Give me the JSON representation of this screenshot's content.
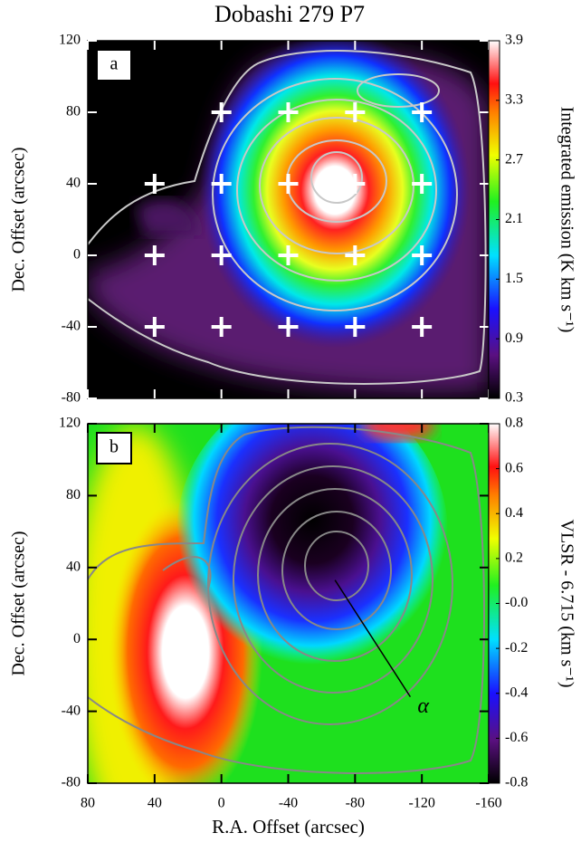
{
  "chart_data": [
    {
      "type": "heatmap",
      "title": "Dobashi 279 P7",
      "panel_label": "a",
      "ylabel": "Dec. Offset (arcsec)",
      "xlim": [
        80,
        -160
      ],
      "xticks": [
        80,
        40,
        0,
        -40,
        -80,
        -120,
        -160
      ],
      "ylim": [
        -80,
        120
      ],
      "yticks": [
        120,
        80,
        40,
        0,
        -40,
        -80
      ],
      "colorbar": {
        "label": "Integrated emission (K km s⁻¹)",
        "lim": [
          0.3,
          3.9
        ],
        "ticks": [
          3.9,
          3.3,
          2.7,
          2.1,
          1.5,
          0.9,
          0.3
        ]
      },
      "markers": {
        "x": [
          0,
          -40,
          -80,
          -120,
          40,
          0,
          -40,
          -80,
          -120,
          40,
          0,
          -40,
          -80,
          -120,
          40,
          0,
          -40,
          -80,
          -120
        ],
        "y": [
          80,
          80,
          80,
          80,
          40,
          40,
          40,
          40,
          40,
          0,
          0,
          0,
          0,
          0,
          -40,
          -40,
          -40,
          -40,
          -40
        ]
      }
    },
    {
      "type": "heatmap",
      "panel_label": "b",
      "xlabel": "R.A. Offset (arcsec)",
      "ylabel": "Dec. Offset (arcsec)",
      "xlim": [
        80,
        -160
      ],
      "xticks": [
        80,
        40,
        0,
        -40,
        -80,
        -120,
        -160
      ],
      "ylim": [
        -80,
        120
      ],
      "yticks": [
        120,
        80,
        40,
        0,
        -40,
        -80
      ],
      "colorbar": {
        "label": "VLSR - 6.715 (km s⁻¹)",
        "lim": [
          -0.8,
          0.8
        ],
        "ticks": [
          0.8,
          0.6,
          0.4,
          0.2,
          {
            "value": 0,
            "label": "-0.0"
          },
          -0.2,
          -0.4,
          -0.6,
          -0.8
        ]
      },
      "annotation": {
        "text": "α",
        "x": -68,
        "y": 33,
        "text_x": -112,
        "text_y": -38
      }
    }
  ]
}
